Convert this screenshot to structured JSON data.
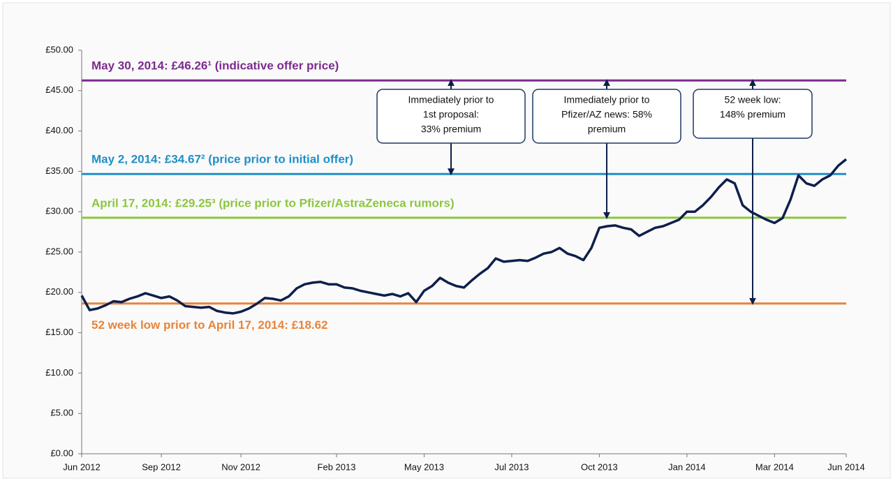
{
  "chart_data": {
    "type": "line",
    "color": "#0d1f4a",
    "categories": [
      "Jun 2012",
      null,
      null,
      null,
      null,
      null,
      null,
      null,
      null,
      null,
      "Sep 2012",
      null,
      null,
      null,
      null,
      null,
      null,
      null,
      null,
      null,
      "Nov 2012",
      null,
      null,
      null,
      null,
      null,
      null,
      null,
      null,
      null,
      null,
      null,
      "Feb 2013",
      null,
      null,
      null,
      null,
      null,
      null,
      null,
      null,
      null,
      null,
      "May 2013",
      null,
      null,
      null,
      null,
      null,
      null,
      null,
      null,
      null,
      null,
      "Jul 2013",
      null,
      null,
      null,
      null,
      null,
      null,
      null,
      null,
      null,
      null,
      "Oct 2013",
      null,
      null,
      null,
      null,
      null,
      null,
      null,
      null,
      null,
      null,
      "Jan 2014",
      null,
      null,
      null,
      null,
      null,
      null,
      null,
      null,
      null,
      null,
      "Mar 2014",
      null,
      null,
      null,
      null,
      null,
      null,
      null,
      null,
      "Jun 2014"
    ],
    "values": [
      19.6,
      17.8,
      18.0,
      18.4,
      18.9,
      18.8,
      19.2,
      19.5,
      19.9,
      19.6,
      19.3,
      19.5,
      19.0,
      18.3,
      18.2,
      18.1,
      18.2,
      17.7,
      17.5,
      17.4,
      17.6,
      18.0,
      18.6,
      19.3,
      19.2,
      19.0,
      19.5,
      20.5,
      21.0,
      21.2,
      21.3,
      21.0,
      21.0,
      20.6,
      20.5,
      20.2,
      20.0,
      19.8,
      19.6,
      19.8,
      19.5,
      19.9,
      18.8,
      20.2,
      20.8,
      21.8,
      21.2,
      20.8,
      20.6,
      21.5,
      22.3,
      23.0,
      24.2,
      23.8,
      23.9,
      24.0,
      23.9,
      24.3,
      24.8,
      25.0,
      25.5,
      24.8,
      24.5,
      24.0,
      25.5,
      28.0,
      28.2,
      28.3,
      28.0,
      27.8,
      27.0,
      27.5,
      28.0,
      28.2,
      28.6,
      29.0,
      30.0,
      30.0,
      30.8,
      31.8,
      33.0,
      34.0,
      33.5,
      30.8,
      30.0,
      29.5,
      29.0,
      28.6,
      29.2,
      31.5,
      34.5,
      33.5,
      33.2,
      34.0,
      34.5,
      35.7,
      36.5
    ],
    "ylim": [
      0,
      50
    ],
    "yticks": [
      {
        "value": 0,
        "label": "£0.00"
      },
      {
        "value": 5,
        "label": "£5.00"
      },
      {
        "value": 10,
        "label": "£10.00"
      },
      {
        "value": 15,
        "label": "£15.00"
      },
      {
        "value": 20,
        "label": "£20.00"
      },
      {
        "value": 25,
        "label": "£25.00"
      },
      {
        "value": 30,
        "label": "£30.00"
      },
      {
        "value": 35,
        "label": "£35.00"
      },
      {
        "value": 40,
        "label": "£40.00"
      },
      {
        "value": 45,
        "label": "£45.00"
      },
      {
        "value": 50,
        "label": "£50.00"
      }
    ],
    "reference_lines": [
      {
        "value": 46.26,
        "color": "#7b2a8e",
        "label": "May 30, 2014: £46.26¹ (indicative offer price)"
      },
      {
        "value": 34.67,
        "color": "#1f8fc8",
        "label": "May 2, 2014: £34.67² (price prior to initial offer)"
      },
      {
        "value": 29.25,
        "color": "#8cc63f",
        "label": "April 17, 2014: £29.25³ (price prior to Pfizer/AstraZeneca rumors)"
      },
      {
        "value": 18.62,
        "color": "#e8843a",
        "label": "52 week low prior to April 17, 2014: £18.62"
      }
    ],
    "callouts": [
      {
        "lines": [
          "Immediately prior to",
          "1st proposal:",
          "33% premium"
        ]
      },
      {
        "lines": [
          "Immediately prior to",
          "Pfizer/AZ news: 58%",
          "premium"
        ]
      },
      {
        "lines": [
          "52 week low:",
          "148% premium"
        ]
      }
    ]
  }
}
